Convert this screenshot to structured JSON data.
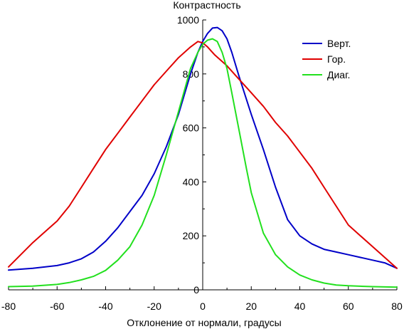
{
  "chart_data": {
    "type": "line",
    "title": "",
    "xlabel": "Отклонение от нормали, градусы",
    "ylabel": "Контрастность",
    "xlim": [
      -80,
      80
    ],
    "ylim": [
      0,
      1000
    ],
    "x_ticks": [
      -80,
      -60,
      -40,
      -20,
      0,
      20,
      40,
      60,
      80
    ],
    "y_ticks": [
      0,
      200,
      400,
      600,
      800,
      1000
    ],
    "x_tick_labels": [
      "-80",
      "-60",
      "-40",
      "-20",
      "0",
      "20",
      "40",
      "60",
      "80"
    ],
    "y_tick_labels": [
      "0",
      "200",
      "400",
      "600",
      "800",
      "1000"
    ],
    "grid": false,
    "legend_position": "top-right",
    "series": [
      {
        "name": "Верт.",
        "color": "#0000c8",
        "x": [
          -80,
          -70,
          -60,
          -55,
          -50,
          -45,
          -40,
          -35,
          -30,
          -25,
          -20,
          -15,
          -10,
          -5,
          -2,
          0,
          2,
          4,
          6,
          8,
          10,
          12,
          15,
          20,
          25,
          30,
          35,
          40,
          45,
          50,
          55,
          60,
          65,
          70,
          75,
          80
        ],
        "y": [
          73,
          80,
          90,
          100,
          115,
          140,
          180,
          230,
          290,
          350,
          430,
          530,
          650,
          800,
          880,
          920,
          950,
          970,
          972,
          960,
          930,
          880,
          790,
          650,
          520,
          380,
          260,
          200,
          170,
          150,
          140,
          130,
          120,
          110,
          100,
          80
        ]
      },
      {
        "name": "Гор.",
        "color": "#e00000",
        "x": [
          -80,
          -75,
          -70,
          -65,
          -60,
          -55,
          -50,
          -45,
          -40,
          -35,
          -30,
          -25,
          -20,
          -15,
          -10,
          -5,
          -2,
          0,
          2,
          5,
          10,
          15,
          20,
          25,
          30,
          35,
          40,
          45,
          50,
          55,
          60,
          65,
          70,
          75,
          80
        ],
        "y": [
          85,
          130,
          175,
          215,
          255,
          310,
          380,
          450,
          520,
          580,
          640,
          700,
          760,
          810,
          860,
          900,
          920,
          915,
          900,
          870,
          830,
          780,
          730,
          680,
          620,
          570,
          510,
          450,
          380,
          310,
          240,
          200,
          160,
          120,
          80
        ]
      },
      {
        "name": "Диаг.",
        "color": "#22e01e",
        "x": [
          -80,
          -70,
          -60,
          -55,
          -50,
          -45,
          -40,
          -35,
          -30,
          -25,
          -20,
          -15,
          -10,
          -5,
          -2,
          0,
          2,
          4,
          6,
          8,
          10,
          12,
          15,
          18,
          20,
          25,
          30,
          35,
          40,
          45,
          50,
          55,
          60,
          70,
          80
        ],
        "y": [
          12,
          14,
          20,
          27,
          37,
          50,
          72,
          110,
          160,
          240,
          350,
          500,
          660,
          820,
          880,
          910,
          925,
          930,
          920,
          880,
          820,
          730,
          590,
          450,
          360,
          210,
          130,
          85,
          55,
          37,
          25,
          18,
          15,
          12,
          10
        ]
      }
    ]
  }
}
